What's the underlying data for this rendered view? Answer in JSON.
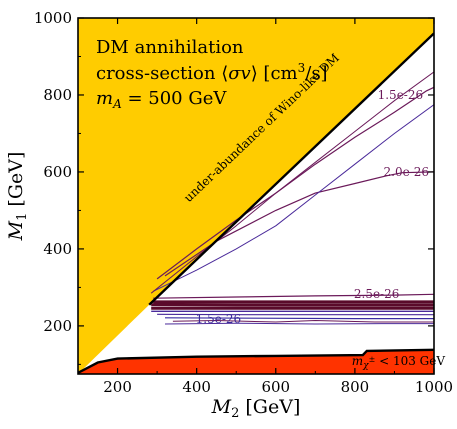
{
  "chart_data": {
    "type": "line",
    "xlabel": "M_2 [GeV]",
    "ylabel": "M_1 [GeV]",
    "xlim": [
      100,
      1000
    ],
    "ylim": [
      75,
      1000
    ],
    "xticks": [
      "200",
      "400",
      "600",
      "800",
      "1000"
    ],
    "yticks": [
      "200",
      "400",
      "600",
      "800",
      "1000"
    ],
    "annotation_lines": [
      "DM annihilation",
      "cross-section ⟨σv⟩ [cm³/s]",
      "m_A = 500 GeV"
    ],
    "regions": [
      {
        "name": "under-abundance of Wino-like DM",
        "color": "#ffcc00"
      },
      {
        "name": "m_χ± < 103 GeV",
        "color": "#ff3300"
      }
    ],
    "contour_labels": [
      {
        "text": "1.5e-26",
        "x": 915,
        "y": 800,
        "color": "#6b1a5a"
      },
      {
        "text": "2.0e-26",
        "x": 930,
        "y": 600,
        "color": "#6b1a5a"
      },
      {
        "text": "2.5e-26",
        "x": 855,
        "y": 283,
        "color": "#6b1a5a"
      },
      {
        "text": "1.5e-26",
        "x": 455,
        "y": 218,
        "color": "#3a2a9a"
      }
    ],
    "series": [
      {
        "points": [
          [
            300,
            322
          ],
          [
            400,
            400
          ],
          [
            500,
            475
          ],
          [
            600,
            545
          ],
          [
            700,
            620
          ],
          [
            800,
            690
          ],
          [
            900,
            755
          ],
          [
            980,
            810
          ],
          [
            1000,
            820
          ]
        ]
      },
      {
        "points": [
          [
            320,
            330
          ],
          [
            450,
            420
          ],
          [
            600,
            500
          ],
          [
            700,
            545
          ],
          [
            800,
            570
          ],
          [
            880,
            590
          ],
          [
            920,
            598
          ],
          [
            1000,
            600
          ]
        ]
      },
      {
        "points": [
          [
            290,
            290
          ],
          [
            400,
            345
          ],
          [
            500,
            400
          ],
          [
            600,
            460
          ],
          [
            700,
            540
          ],
          [
            800,
            620
          ],
          [
            900,
            700
          ],
          [
            1000,
            775
          ]
        ]
      },
      {
        "points": [
          [
            285,
            285
          ],
          [
            400,
            380
          ],
          [
            500,
            460
          ],
          [
            600,
            545
          ],
          [
            700,
            625
          ],
          [
            800,
            705
          ],
          [
            900,
            785
          ],
          [
            1000,
            860
          ]
        ]
      },
      {
        "points": [
          [
            290,
            272
          ],
          [
            500,
            275
          ],
          [
            700,
            278
          ],
          [
            900,
            280
          ],
          [
            1000,
            282
          ]
        ]
      },
      {
        "points": [
          [
            290,
            262
          ],
          [
            500,
            262
          ],
          [
            700,
            262
          ],
          [
            900,
            262
          ],
          [
            1000,
            262
          ]
        ]
      },
      {
        "points": [
          [
            285,
            255
          ],
          [
            500,
            254
          ],
          [
            700,
            254
          ],
          [
            900,
            254
          ],
          [
            1000,
            254
          ]
        ]
      },
      {
        "points": [
          [
            285,
            246
          ],
          [
            500,
            246
          ],
          [
            700,
            246
          ],
          [
            900,
            246
          ],
          [
            1000,
            246
          ]
        ]
      },
      {
        "points": [
          [
            285,
            238
          ],
          [
            500,
            238
          ],
          [
            700,
            238
          ],
          [
            900,
            238
          ],
          [
            1000,
            238
          ]
        ]
      },
      {
        "points": [
          [
            300,
            230
          ],
          [
            500,
            229
          ],
          [
            700,
            229
          ],
          [
            900,
            229
          ],
          [
            1000,
            229
          ]
        ]
      },
      {
        "points": [
          [
            320,
            221
          ],
          [
            550,
            220
          ],
          [
            800,
            219
          ],
          [
            1000,
            219
          ]
        ]
      },
      {
        "points": [
          [
            340,
            212
          ],
          [
            450,
            214
          ],
          [
            600,
            210
          ],
          [
            700,
            214
          ],
          [
            850,
            210
          ],
          [
            1000,
            210
          ]
        ]
      },
      {
        "points": [
          [
            320,
            205
          ],
          [
            500,
            207
          ],
          [
            700,
            205
          ],
          [
            900,
            206
          ],
          [
            1000,
            206
          ]
        ]
      }
    ]
  }
}
